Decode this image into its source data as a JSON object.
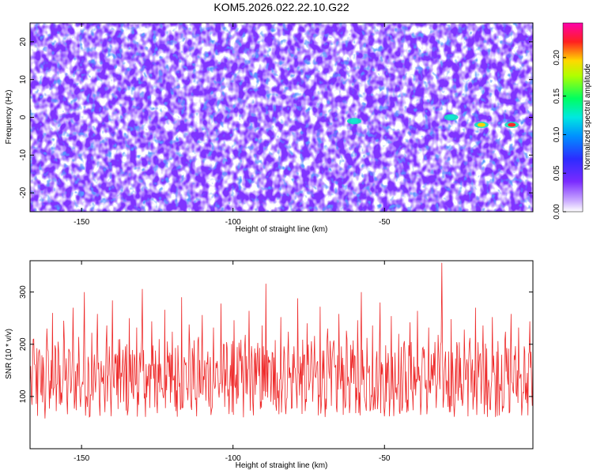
{
  "title": "KOM5.2026.022.22.10.G22",
  "colors": {
    "spectrogram_background": "#7f33ff",
    "snr_line": "#ee2a2a",
    "colormap": [
      "#ffffff",
      "#9a55ff",
      "#5a1aff",
      "#1a3cff",
      "#00c8ff",
      "#00ff80",
      "#ffff00",
      "#ff1b1b",
      "#ff00aa"
    ]
  },
  "chart_data": [
    {
      "type": "heatmap",
      "name": "spectrogram",
      "xlabel": "Height of straight line (km)",
      "ylabel": "Frequency (Hz)",
      "xlim": [
        -167,
        -1
      ],
      "ylim": [
        -25,
        25
      ],
      "x_ticks": [
        -150,
        -100,
        -50
      ],
      "y_ticks": [
        -20,
        -10,
        0,
        10,
        20
      ],
      "colorbar": {
        "label": "Normalized spectral amplitude",
        "range": [
          0,
          0.245
        ],
        "ticks": [
          "0.00",
          "0.05",
          "0.10",
          "0.15",
          "0.20"
        ]
      },
      "notable_features": [
        {
          "x": -60,
          "y": -1,
          "amplitude": 0.12
        },
        {
          "x": -28,
          "y": 0,
          "amplitude": 0.12
        },
        {
          "x": -18,
          "y": -2,
          "amplitude": 0.2
        },
        {
          "x": -8,
          "y": -2,
          "amplitude": 0.22
        }
      ]
    },
    {
      "type": "line",
      "name": "snr",
      "xlabel": "Height of straight line (km)",
      "ylabel": "SNR (10 * v/v)",
      "xlim": [
        -167,
        -1
      ],
      "ylim": [
        0,
        360
      ],
      "x_ticks": [
        -150,
        -100,
        -50
      ],
      "y_ticks": [
        100,
        200,
        300
      ],
      "series": [
        {
          "x_start": -167,
          "x_end": -1,
          "values": [
            120,
            84,
            210,
            146,
            63,
            190,
            102,
            175,
            58,
            230,
            140,
            96,
            260,
            118,
            72,
            205,
            160,
            88,
            245,
            134,
            66,
            188,
            112,
            270,
            94,
            156,
            214,
            80,
            128,
            300,
            100,
            176,
            62,
            222,
            150,
            108,
            258,
            90,
            168,
            124,
            70,
            236,
            142,
            98,
            284,
            116,
            182,
            76,
            210,
            138,
            90,
            196,
            64,
            250,
            128,
            104,
            172,
            232,
            84,
            146,
            306,
            96,
            162,
            120,
            78,
            244,
            134,
            188,
            68,
            210,
            150,
            102,
            266,
            112,
            178,
            88,
            224,
            140,
            72,
            198,
            126,
            290,
            94,
            160,
            116,
            238,
            82,
            176,
            144,
            62,
            214,
            108,
            256,
            132,
            92,
            186,
            150,
            74,
            232,
            120,
            168,
            98,
            278,
            136,
            80,
            204,
            114,
            160,
            70,
            246,
            142,
            96,
            180,
            126,
            60,
            218,
            104,
            264,
            138,
            88,
            192,
            122,
            154,
            76,
            236,
            110,
            316,
            98,
            170,
            132,
            84,
            208,
            146,
            66,
            252,
            118,
            182,
            94,
            224,
            136,
            78,
            196,
            128,
            288,
            102,
            164,
            140,
            72,
            240,
            112,
            178,
            90,
            216,
            148,
            64,
            272,
            120,
            188,
            96,
            230,
            134,
            82,
            202,
            156,
            70,
            258,
            114,
            174,
            98,
            226,
            138,
            86,
            190,
            124,
            68,
            246,
            108,
            300,
            132,
            92,
            212,
            150,
            76,
            236,
            118,
            170,
            100,
            280,
            142,
            84,
            198,
            126,
            62,
            254,
            116,
            184,
            94,
            220,
            136,
            80,
            206,
            148,
            72,
            242,
            112,
            176,
            102,
            264,
            130,
            88,
            194,
            122,
            66,
            232,
            106,
            160,
            140,
            78,
            218,
            114,
            356,
            96,
            186,
            128,
            70,
            248,
            144,
            90,
            204,
            118,
            174,
            82,
            228,
            134,
            62,
            212,
            150,
            98,
            270,
            120,
            166,
            86,
            236,
            110,
            192,
            132,
            74,
            252,
            146,
            94,
            206,
            124,
            180,
            78,
            224,
            138,
            68,
            258,
            112,
            170,
            100,
            232,
            140,
            84,
            196,
            126,
            64,
            244,
            116
          ]
        }
      ]
    }
  ]
}
